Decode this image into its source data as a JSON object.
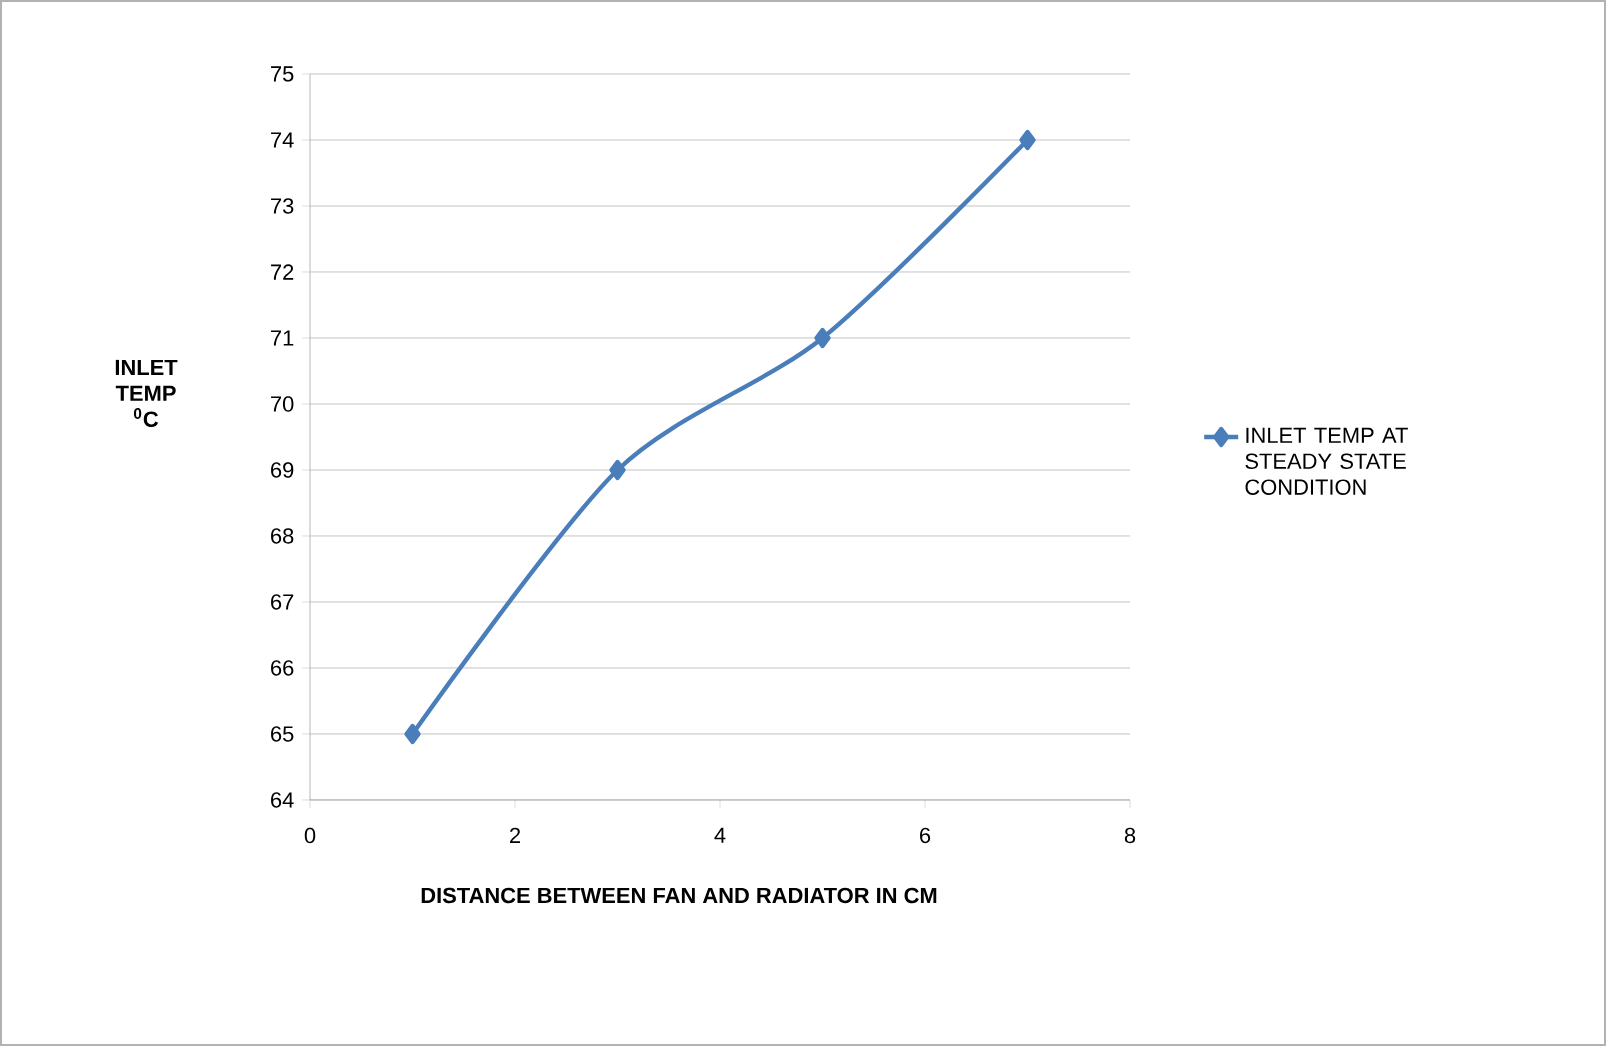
{
  "chart_data": {
    "type": "line",
    "xlabel": "DISTANCE BETWEEN  FAN AND RADIATOR IN CM",
    "ylabel": "INLET TEMP $^{0}$C",
    "x": [
      1,
      3,
      5,
      7
    ],
    "series": [
      {
        "name": "INLET TEMP AT STEADY STATE CONDITION",
        "color": "#4a7ebb",
        "values": [
          65,
          69,
          71,
          74
        ]
      }
    ],
    "xlim": [
      0,
      8
    ],
    "xticks": [
      0,
      2,
      4,
      6,
      8
    ],
    "ylim": [
      64,
      75
    ],
    "yticks": [
      64,
      65,
      66,
      67,
      68,
      69,
      70,
      71,
      72,
      73,
      74,
      75
    ],
    "grid": "y",
    "legend": "right",
    "marker": "diamond",
    "line_style": "solid"
  }
}
